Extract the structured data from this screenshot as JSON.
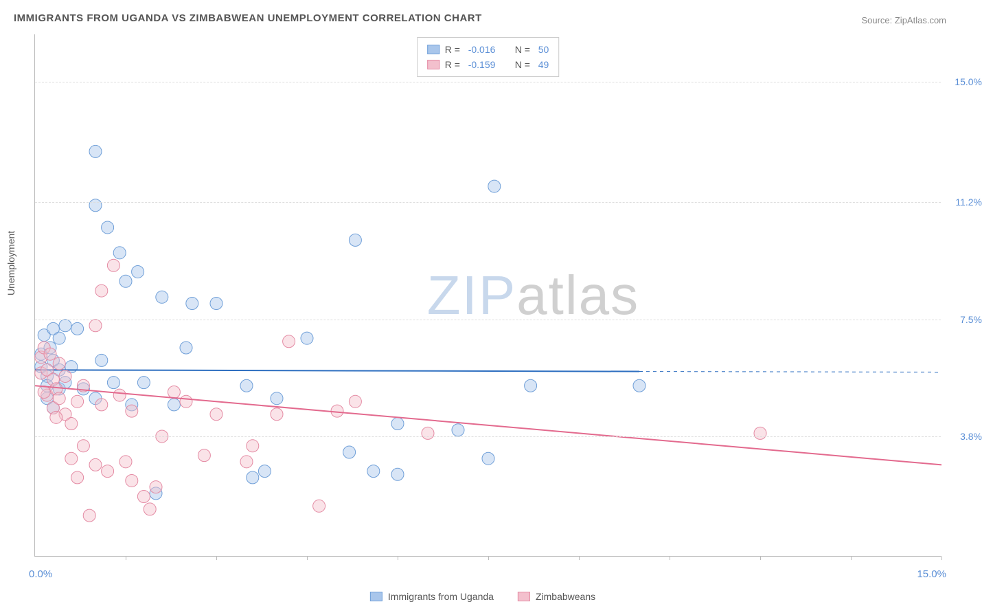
{
  "title": "IMMIGRANTS FROM UGANDA VS ZIMBABWEAN UNEMPLOYMENT CORRELATION CHART",
  "source_label": "Source: ZipAtlas.com",
  "watermark_zip": "ZIP",
  "watermark_atlas": "atlas",
  "y_axis_title": "Unemployment",
  "chart": {
    "type": "scatter-with-regression",
    "background_color": "#ffffff",
    "grid_color": "#dddddd",
    "axis_color": "#bbbbbb",
    "tick_label_color": "#5b8fd6",
    "xlim": [
      0,
      15
    ],
    "ylim": [
      0,
      16.5
    ],
    "x_min_label": "0.0%",
    "x_max_label": "15.0%",
    "y_ticks": [
      {
        "value": 3.8,
        "label": "3.8%"
      },
      {
        "value": 7.5,
        "label": "7.5%"
      },
      {
        "value": 11.2,
        "label": "11.2%"
      },
      {
        "value": 15.0,
        "label": "15.0%"
      }
    ],
    "x_tick_positions": [
      1.5,
      3.0,
      4.5,
      6.0,
      7.5,
      9.0,
      10.5,
      12.0,
      13.5,
      15.0
    ],
    "marker_radius": 9,
    "marker_fill_opacity": 0.45,
    "marker_stroke_width": 1,
    "line_width": 2,
    "series": [
      {
        "id": "uganda",
        "label": "Immigrants from Uganda",
        "fill_color": "#a9c6eb",
        "stroke_color": "#6f9fd8",
        "line_color": "#2e6fc0",
        "r_value": "-0.016",
        "n_value": "50",
        "regression": {
          "x1": 0,
          "y1": 5.9,
          "x2": 10,
          "y2": 5.85,
          "dash_to": 15,
          "dash_y": 5.83
        },
        "points": [
          [
            0.1,
            6.4
          ],
          [
            0.2,
            5.7
          ],
          [
            0.1,
            6.0
          ],
          [
            0.2,
            5.4
          ],
          [
            0.3,
            4.7
          ],
          [
            0.4,
            5.3
          ],
          [
            0.15,
            7.0
          ],
          [
            0.3,
            7.2
          ],
          [
            0.4,
            6.9
          ],
          [
            0.5,
            7.3
          ],
          [
            0.7,
            7.2
          ],
          [
            1.0,
            12.8
          ],
          [
            1.0,
            11.1
          ],
          [
            1.2,
            10.4
          ],
          [
            1.4,
            9.6
          ],
          [
            1.5,
            8.7
          ],
          [
            1.7,
            9.0
          ],
          [
            1.3,
            5.5
          ],
          [
            1.8,
            5.5
          ],
          [
            2.0,
            2.0
          ],
          [
            2.3,
            4.8
          ],
          [
            2.5,
            6.6
          ],
          [
            2.6,
            8.0
          ],
          [
            3.0,
            8.0
          ],
          [
            3.6,
            2.5
          ],
          [
            3.8,
            2.7
          ],
          [
            3.5,
            5.4
          ],
          [
            4.0,
            5.0
          ],
          [
            4.5,
            6.9
          ],
          [
            5.2,
            3.3
          ],
          [
            5.3,
            10.0
          ],
          [
            5.6,
            2.7
          ],
          [
            6.0,
            4.2
          ],
          [
            6.0,
            2.6
          ],
          [
            7.0,
            4.0
          ],
          [
            7.5,
            3.1
          ],
          [
            7.6,
            11.7
          ],
          [
            8.2,
            5.4
          ],
          [
            10.0,
            5.4
          ],
          [
            0.2,
            5.0
          ],
          [
            0.3,
            6.2
          ],
          [
            0.4,
            5.9
          ],
          [
            0.5,
            5.5
          ],
          [
            0.6,
            6.0
          ],
          [
            0.8,
            5.3
          ],
          [
            1.0,
            5.0
          ],
          [
            1.1,
            6.2
          ],
          [
            1.6,
            4.8
          ],
          [
            2.1,
            8.2
          ],
          [
            0.25,
            6.6
          ]
        ]
      },
      {
        "id": "zimbabwe",
        "label": "Zimbabweans",
        "fill_color": "#f3c0cd",
        "stroke_color": "#e48aa3",
        "line_color": "#e36a8e",
        "r_value": "-0.159",
        "n_value": "49",
        "regression": {
          "x1": 0,
          "y1": 5.4,
          "x2": 15,
          "y2": 2.9
        },
        "points": [
          [
            0.1,
            6.3
          ],
          [
            0.1,
            5.8
          ],
          [
            0.15,
            6.6
          ],
          [
            0.2,
            5.9
          ],
          [
            0.2,
            5.1
          ],
          [
            0.25,
            6.4
          ],
          [
            0.3,
            5.6
          ],
          [
            0.3,
            4.7
          ],
          [
            0.35,
            5.3
          ],
          [
            0.4,
            5.0
          ],
          [
            0.4,
            6.1
          ],
          [
            0.5,
            4.5
          ],
          [
            0.5,
            5.7
          ],
          [
            0.6,
            3.1
          ],
          [
            0.6,
            4.2
          ],
          [
            0.7,
            4.9
          ],
          [
            0.7,
            2.5
          ],
          [
            0.8,
            5.4
          ],
          [
            0.8,
            3.5
          ],
          [
            0.9,
            1.3
          ],
          [
            1.0,
            2.9
          ],
          [
            1.0,
            7.3
          ],
          [
            1.1,
            8.4
          ],
          [
            1.1,
            4.8
          ],
          [
            1.2,
            2.7
          ],
          [
            1.3,
            9.2
          ],
          [
            1.4,
            5.1
          ],
          [
            1.5,
            3.0
          ],
          [
            1.6,
            2.4
          ],
          [
            1.6,
            4.6
          ],
          [
            1.8,
            1.9
          ],
          [
            1.9,
            1.5
          ],
          [
            2.0,
            2.2
          ],
          [
            2.1,
            3.8
          ],
          [
            2.3,
            5.2
          ],
          [
            2.5,
            4.9
          ],
          [
            2.8,
            3.2
          ],
          [
            3.0,
            4.5
          ],
          [
            3.5,
            3.0
          ],
          [
            3.6,
            3.5
          ],
          [
            4.0,
            4.5
          ],
          [
            4.2,
            6.8
          ],
          [
            4.7,
            1.6
          ],
          [
            5.0,
            4.6
          ],
          [
            5.3,
            4.9
          ],
          [
            6.5,
            3.9
          ],
          [
            12.0,
            3.9
          ],
          [
            0.15,
            5.2
          ],
          [
            0.35,
            4.4
          ]
        ]
      }
    ],
    "legend_top": {
      "r_label": "R =",
      "n_label": "N ="
    }
  }
}
